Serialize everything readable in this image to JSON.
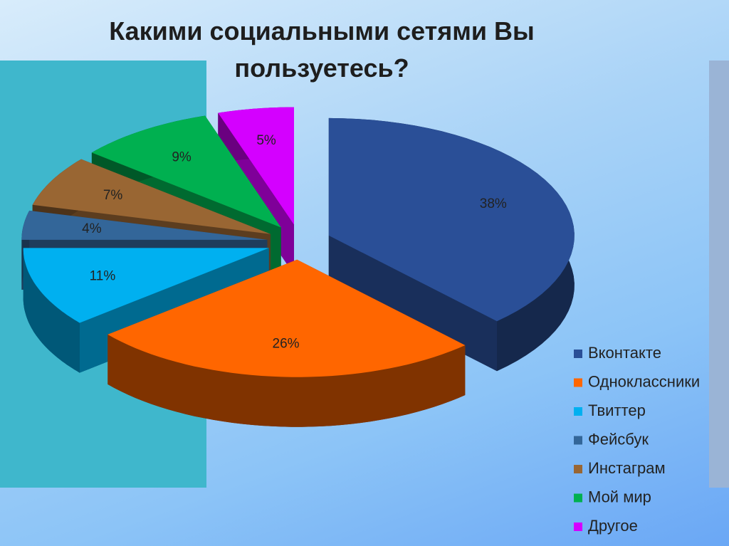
{
  "chart_data": {
    "type": "pie",
    "title": "Какими социальными сетями Вы пользуетесь?",
    "categories": [
      "Вконтакте",
      "Одноклассники",
      "Твиттер",
      "Фейсбук",
      "Инстаграм",
      "Мой мир",
      "Другое"
    ],
    "values": [
      38,
      26,
      11,
      4,
      7,
      9,
      5
    ],
    "value_labels": [
      "38%",
      "26%",
      "11%",
      "4%",
      "7%",
      "9%",
      "5%"
    ],
    "colors": [
      "#2a4f97",
      "#ff6600",
      "#00b0f0",
      "#336699",
      "#996633",
      "#00b050",
      "#d400ff"
    ],
    "legend": "right"
  }
}
